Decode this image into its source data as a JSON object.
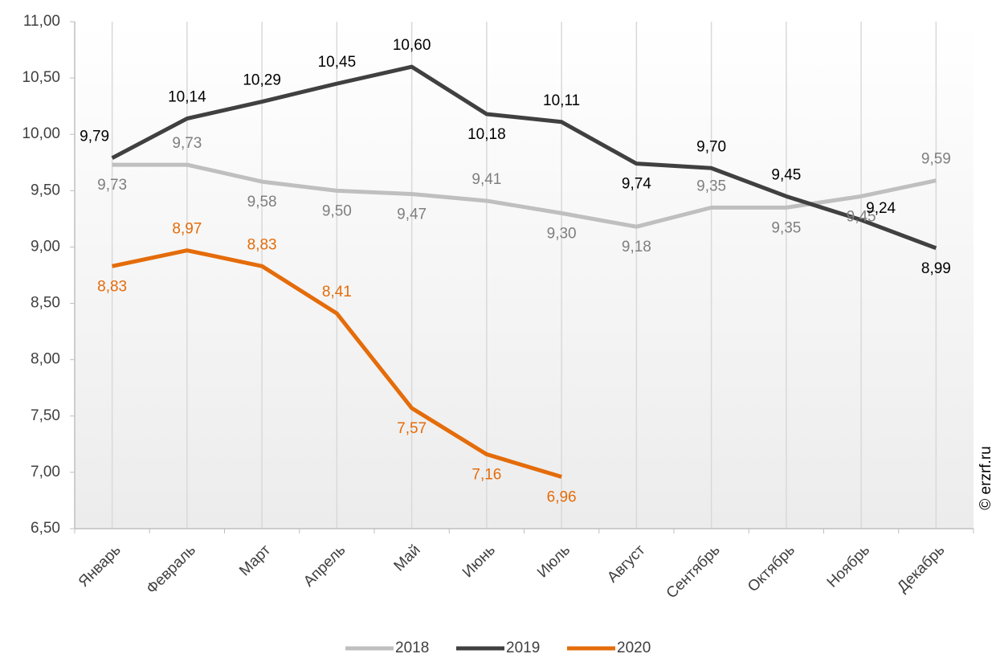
{
  "chart_data": {
    "type": "line",
    "categories": [
      "Январь",
      "Февраль",
      "Март",
      "Апрель",
      "Май",
      "Июнь",
      "Июль",
      "Август",
      "Сентябрь",
      "Октябрь",
      "Ноябрь",
      "Декабрь"
    ],
    "series": [
      {
        "name": "2018",
        "color": "#bfbfbf",
        "label_color": "#7f7f7f",
        "values": [
          9.73,
          9.73,
          9.58,
          9.5,
          9.47,
          9.41,
          9.3,
          9.18,
          9.35,
          9.35,
          9.45,
          9.59
        ],
        "value_labels": [
          "9,73",
          "9,73",
          "9,58",
          "9,50",
          "9,47",
          "9,41",
          "9,30",
          "9,18",
          "9,35",
          "9,35",
          "9,45",
          "9,59"
        ]
      },
      {
        "name": "2019",
        "color": "#404040",
        "label_color": "#000000",
        "values": [
          9.79,
          10.14,
          10.29,
          10.45,
          10.6,
          10.18,
          10.11,
          9.74,
          9.7,
          9.45,
          9.24,
          8.99
        ],
        "value_labels": [
          "9,79",
          "10,14",
          "10,29",
          "10,45",
          "10,60",
          "10,18",
          "10,11",
          "9,74",
          "9,70",
          "9,45",
          "9,24",
          "8,99"
        ]
      },
      {
        "name": "2020",
        "color": "#e46c0a",
        "label_color": "#e46c0a",
        "values": [
          8.83,
          8.97,
          8.83,
          8.41,
          7.57,
          7.16,
          6.96,
          null,
          null,
          null,
          null,
          null
        ],
        "value_labels": [
          "8,83",
          "8,97",
          "8,83",
          "8,41",
          "7,57",
          "7,16",
          "6,96",
          null,
          null,
          null,
          null,
          null
        ]
      }
    ],
    "ylim": [
      6.5,
      11
    ],
    "yticks": [
      {
        "value": 6.5,
        "label": "6,50"
      },
      {
        "value": 7,
        "label": "7,00"
      },
      {
        "value": 7.5,
        "label": "7,50"
      },
      {
        "value": 8,
        "label": "8,00"
      },
      {
        "value": 8.5,
        "label": "8,50"
      },
      {
        "value": 9,
        "label": "9,00"
      },
      {
        "value": 9.5,
        "label": "9,50"
      },
      {
        "value": 10,
        "label": "10,00"
      },
      {
        "value": 10.5,
        "label": "10,50"
      },
      {
        "value": 11,
        "label": "11,00"
      }
    ],
    "grid": "x",
    "legend": "bottom",
    "watermark": "© erzrf.ru"
  }
}
